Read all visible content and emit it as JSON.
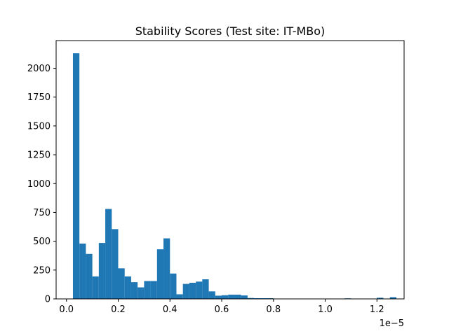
{
  "chart_data": {
    "type": "bar",
    "title": "Stability Scores (Test site: IT-MBo)",
    "xlabel": "",
    "ylabel": "",
    "x_offset_label": "1e−5",
    "xlim": [
      -0.04,
      1.305
    ],
    "ylim": [
      0,
      2240
    ],
    "x_ticks": [
      0.0,
      0.2,
      0.4,
      0.6,
      0.8,
      1.0,
      1.2
    ],
    "x_tick_labels": [
      "0.0",
      "0.2",
      "0.4",
      "0.6",
      "0.8",
      "1.0",
      "1.2"
    ],
    "y_ticks": [
      0,
      250,
      500,
      750,
      1000,
      1250,
      1500,
      1750,
      2000
    ],
    "y_tick_labels": [
      "0",
      "250",
      "500",
      "750",
      "1000",
      "1250",
      "1500",
      "1750",
      "2000"
    ],
    "bin_start": 0.025,
    "bin_width": 0.025,
    "values": [
      2130,
      480,
      390,
      195,
      485,
      780,
      605,
      265,
      195,
      145,
      100,
      155,
      155,
      430,
      525,
      220,
      40,
      130,
      140,
      150,
      170,
      65,
      28,
      32,
      37,
      37,
      30,
      8,
      6,
      6,
      6,
      2,
      2,
      1,
      1,
      1,
      1,
      1,
      1,
      1,
      1,
      1,
      5,
      1,
      1,
      1,
      1,
      10,
      1,
      15,
      1
    ],
    "bar_color": "#1f77b4",
    "grid": false
  }
}
